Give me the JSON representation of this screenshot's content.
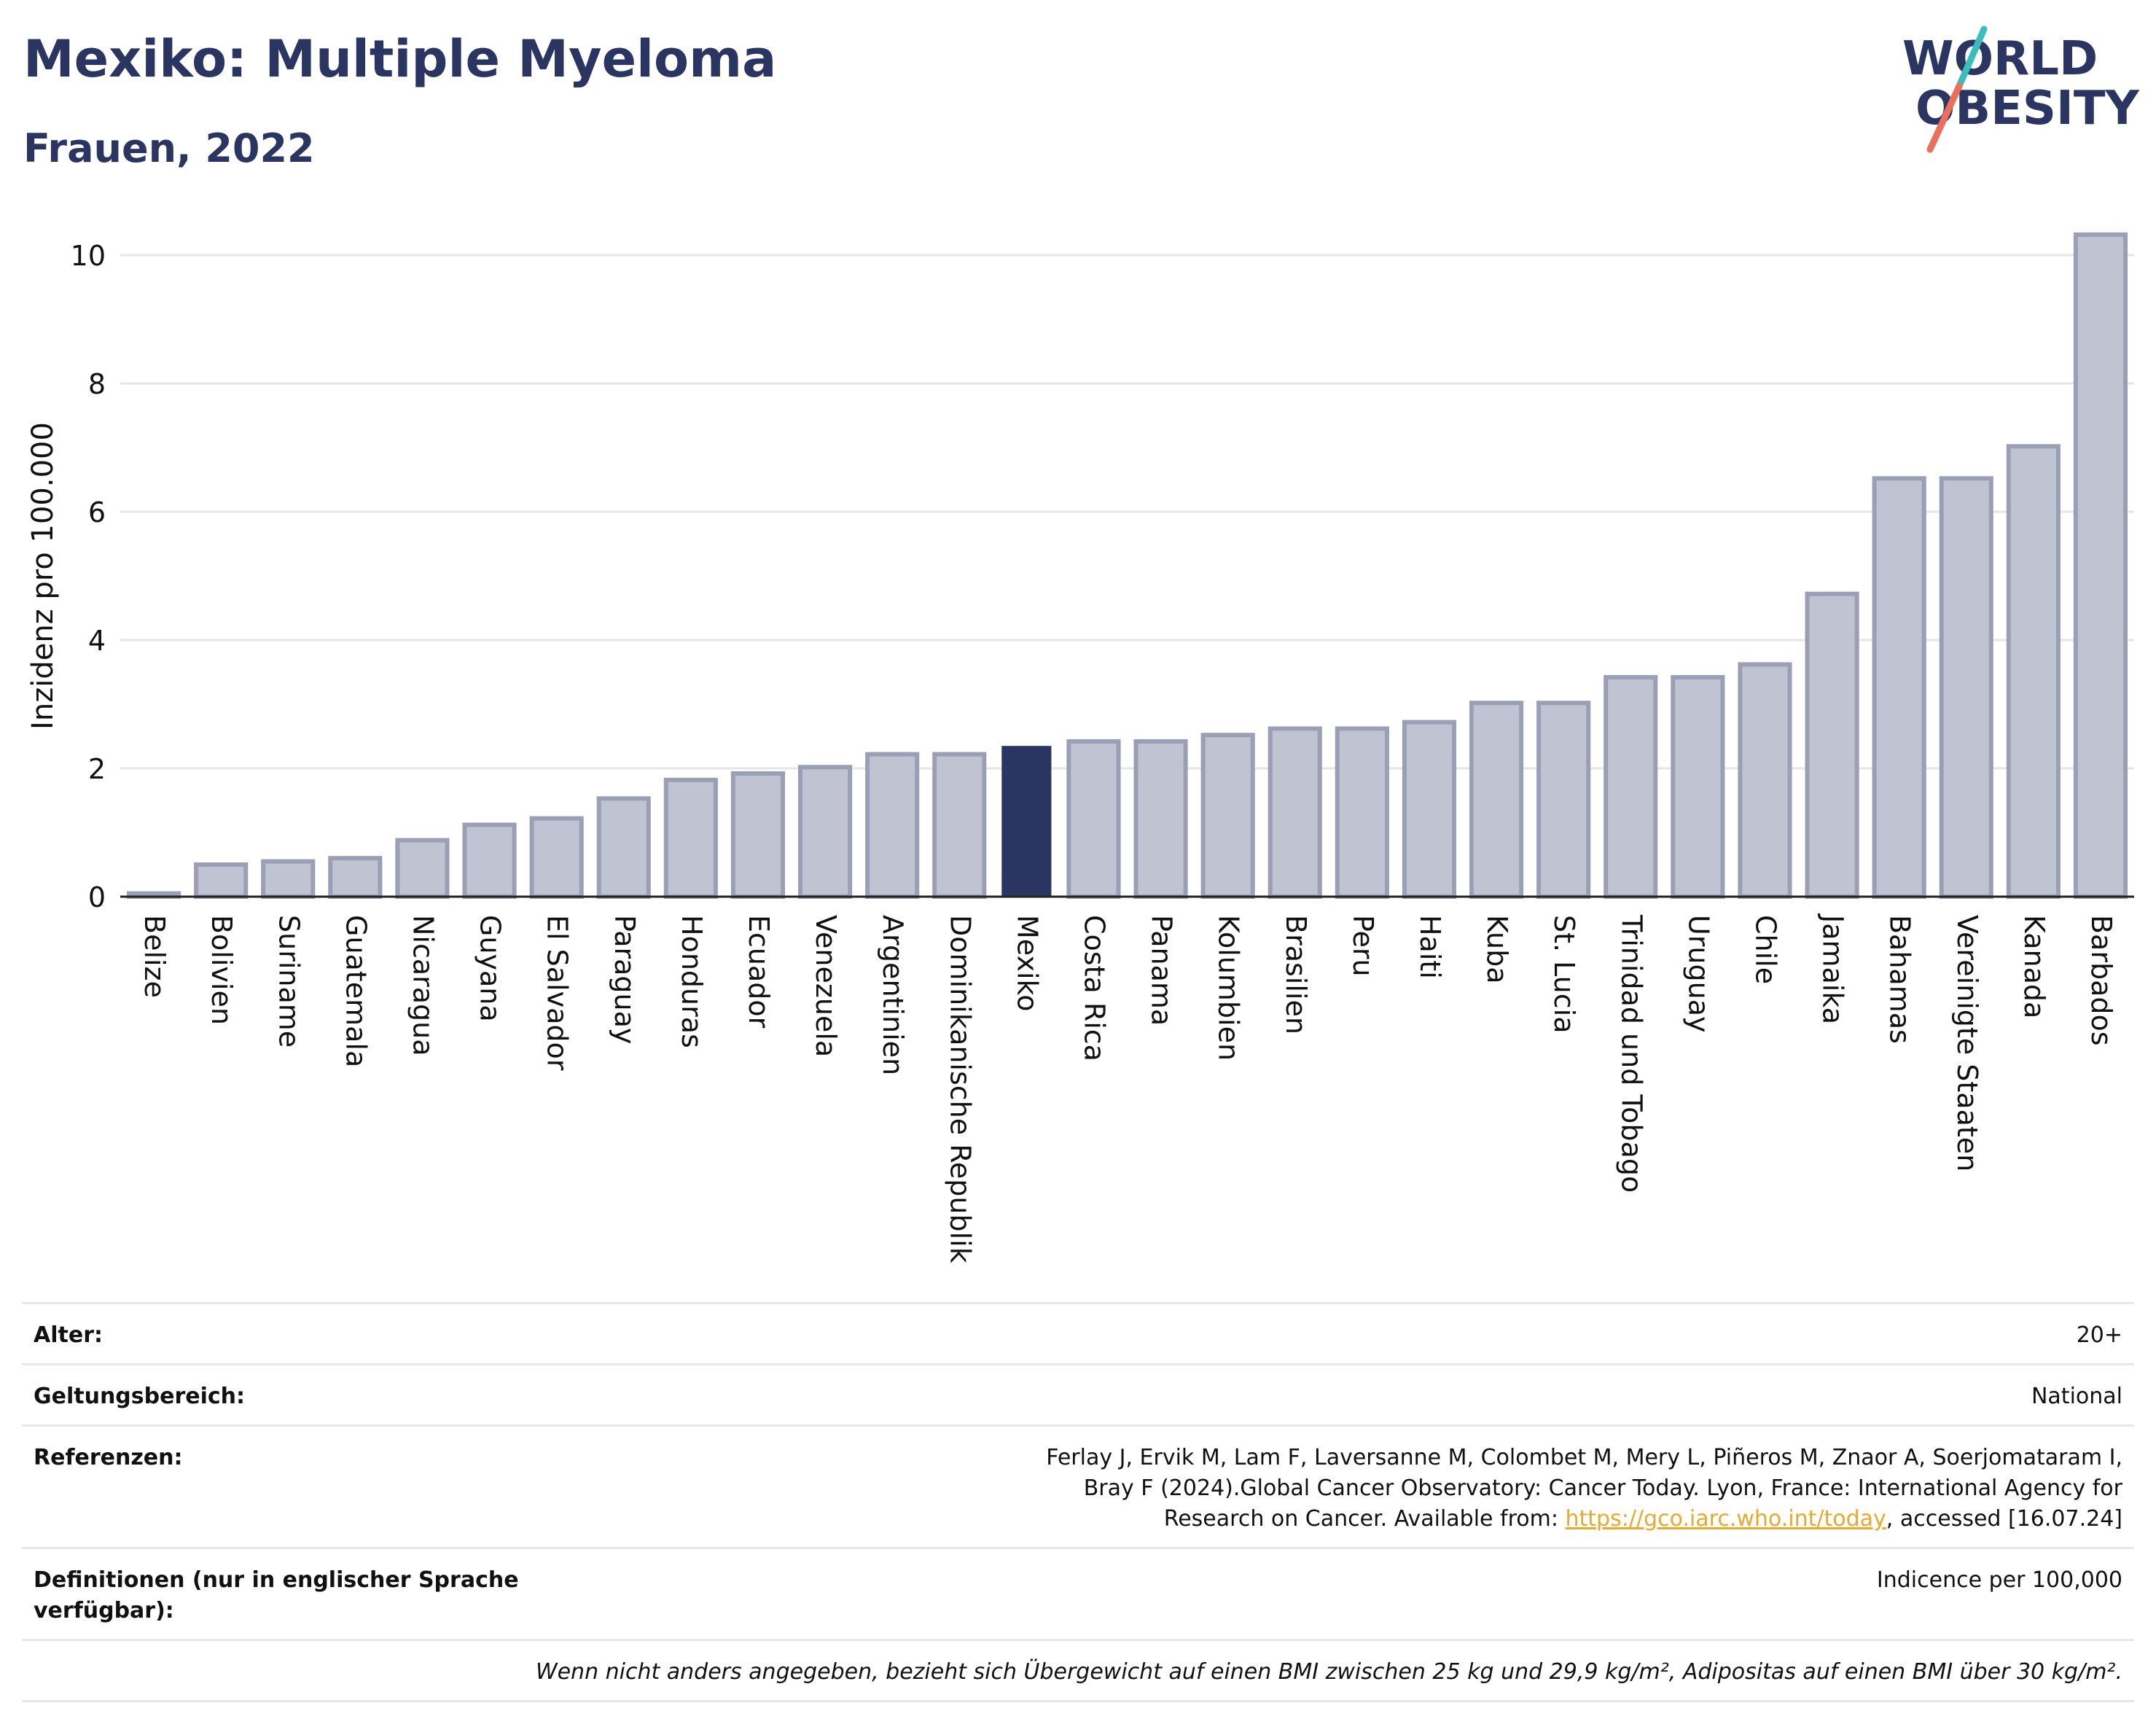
{
  "header": {
    "title": "Mexiko: Multiple Myeloma",
    "subtitle": "Frauen, 2022"
  },
  "logo": {
    "line1": "WORLD",
    "line2": "OBESITY"
  },
  "colors": {
    "highlight": "#2b3561",
    "bar_fill": "#c0c3d1",
    "bar_stroke": "#9a9fb6",
    "grid": "#e6e6e6",
    "logo_teal": "#3bbdbd",
    "logo_coral": "#e8705d"
  },
  "chart_data": {
    "type": "bar",
    "title": "Mexiko: Multiple Myeloma",
    "subtitle": "Frauen, 2022",
    "ylabel": "Inzidenz pro 100.000",
    "ylim": [
      0,
      10.6
    ],
    "yticks": [
      0,
      2,
      4,
      6,
      8,
      10
    ],
    "highlight": "Mexiko",
    "categories": [
      "Belize",
      "Bolivien",
      "Suriname",
      "Guatemala",
      "Nicaragua",
      "Guyana",
      "El Salvador",
      "Paraguay",
      "Honduras",
      "Ecuador",
      "Venezuela",
      "Argentinien",
      "Dominikanische Republik",
      "Mexiko",
      "Costa Rica",
      "Panama",
      "Kolumbien",
      "Brasilien",
      "Peru",
      "Haiti",
      "Kuba",
      "St. Lucia",
      "Trinidad und Tobago",
      "Uruguay",
      "Chile",
      "Jamaika",
      "Bahamas",
      "Vereinigte Staaten",
      "Kanada",
      "Barbados"
    ],
    "values": [
      0.05,
      0.5,
      0.55,
      0.6,
      0.88,
      1.12,
      1.22,
      1.53,
      1.82,
      1.92,
      2.02,
      2.22,
      2.22,
      2.35,
      2.42,
      2.42,
      2.52,
      2.62,
      2.62,
      2.72,
      3.02,
      3.02,
      3.42,
      3.42,
      3.62,
      4.72,
      6.52,
      6.52,
      7.02,
      10.32
    ],
    "grid": true
  },
  "info": {
    "rows": [
      {
        "label": "Alter:",
        "value": "20+"
      },
      {
        "label": "Geltungsbereich:",
        "value": "National"
      },
      {
        "label": "Referenzen:",
        "value_pre": "Ferlay J, Ervik M, Lam F, Laversanne M, Colombet M, Mery L, Piñeros M, Znaor A, Soerjomataram I, Bray F (2024).Global Cancer Observatory: Cancer Today. Lyon, France: International Agency for Research on Cancer. Available from: ",
        "link": "https://gco.iarc.who.int/today",
        "value_post": ", accessed [16.07.24]"
      },
      {
        "label": "Definitionen (nur in englischer Sprache verfügbar):",
        "value": "Indicence per 100,000"
      }
    ],
    "note": "Wenn nicht anders angegeben, bezieht sich Übergewicht auf einen BMI zwischen 25 kg und 29,9 kg/m², Adipositas auf einen BMI über 30 kg/m²."
  }
}
